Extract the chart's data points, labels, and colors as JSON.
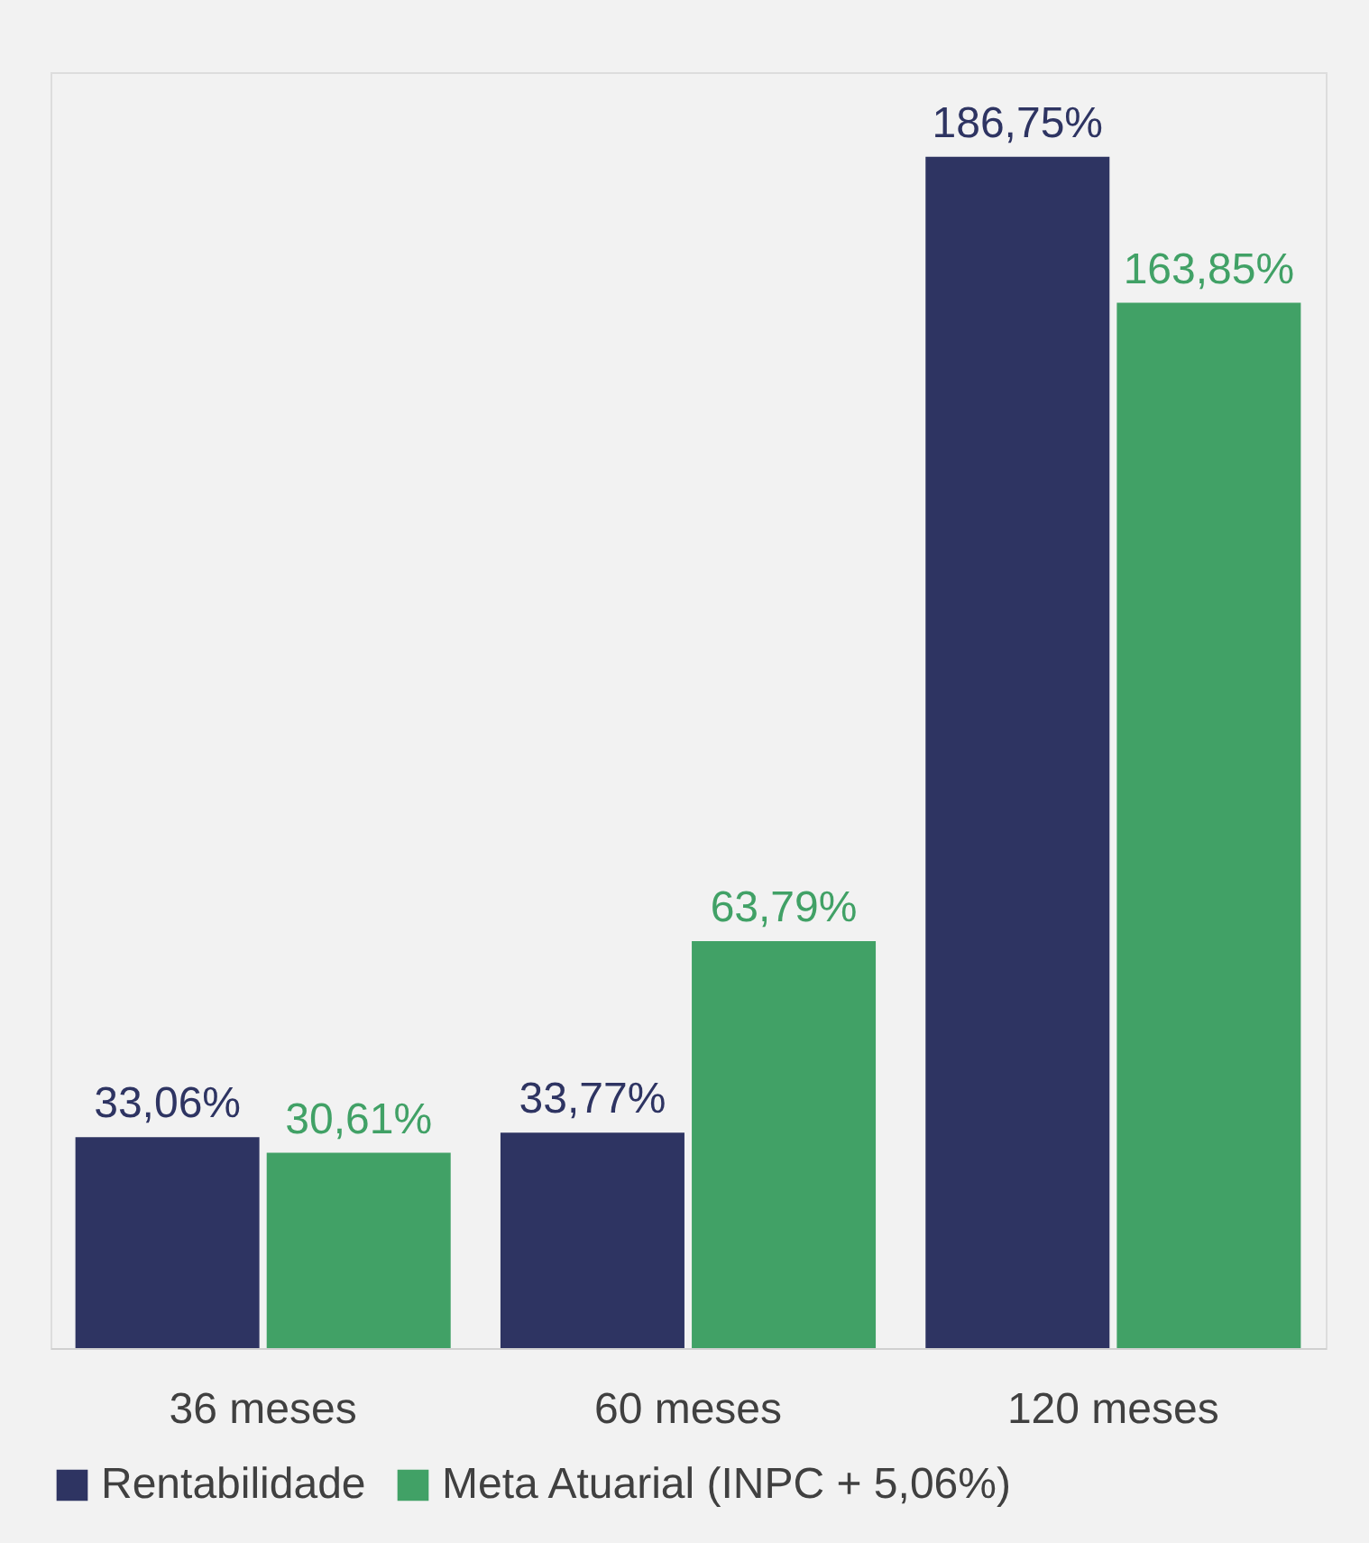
{
  "chart_data": {
    "type": "bar",
    "categories": [
      "36 meses",
      "60 meses",
      "120 meses"
    ],
    "series": [
      {
        "name": "Rentabilidade",
        "color": "#2e3462",
        "values": [
          33.06,
          33.77,
          186.75
        ],
        "value_labels": [
          "33,06%",
          "33,77%",
          "186,75%"
        ]
      },
      {
        "name": "Meta Atuarial (INPC + 5,06%)",
        "color": "#41a166",
        "values": [
          30.61,
          63.79,
          163.85
        ],
        "value_labels": [
          "30,61%",
          "63,79%",
          "163,85%"
        ]
      }
    ],
    "legend": "bottom"
  }
}
